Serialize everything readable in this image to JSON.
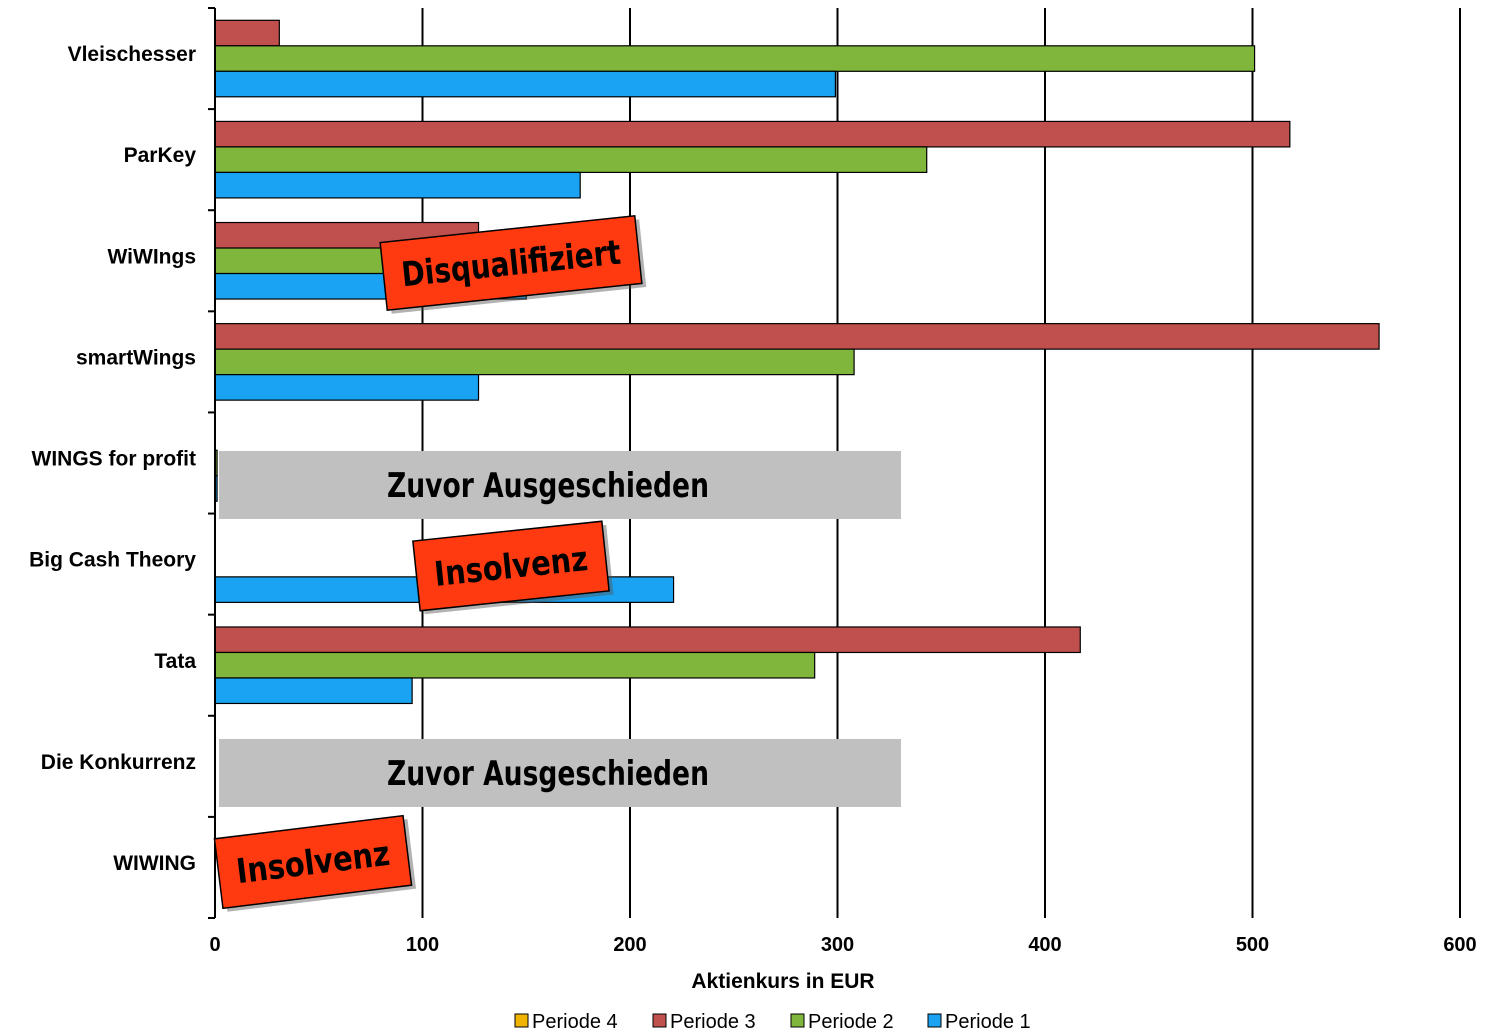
{
  "chart_data": {
    "type": "bar",
    "orientation": "horizontal",
    "categories": [
      "Vleischesser",
      "ParKey",
      "WiWIngs",
      "smartWings",
      "WINGS for profit",
      "Big Cash Theory",
      "Tata",
      "Die Konkurrenz",
      "WIWING"
    ],
    "series": [
      {
        "name": "Periode 4",
        "color": "#f0b400",
        "values": [
          null,
          null,
          null,
          null,
          null,
          null,
          null,
          null,
          null
        ]
      },
      {
        "name": "Periode 3",
        "color": "#c0504d",
        "values": [
          31,
          518,
          127,
          561,
          null,
          null,
          417,
          null,
          null
        ]
      },
      {
        "name": "Periode 2",
        "color": "#80b63b",
        "values": [
          501,
          343,
          95,
          308,
          1,
          null,
          289,
          null,
          null
        ]
      },
      {
        "name": "Periode 1",
        "color": "#1aa3f2",
        "values": [
          299,
          176,
          150,
          127,
          1,
          221,
          95,
          null,
          null
        ]
      }
    ],
    "xlabel": "Aktienkurs  in EUR",
    "ylabel": "",
    "xlim": [
      0,
      600
    ],
    "xticks": [
      0,
      100,
      200,
      300,
      400,
      500,
      600
    ],
    "grid": true,
    "legend_position": "bottom",
    "annotations": [
      {
        "category": "WiWIngs",
        "text": "Disqualifiziert",
        "style": "stamp",
        "color": "#ff3a10"
      },
      {
        "category": "WINGS for profit",
        "text": "Zuvor Ausgeschieden",
        "style": "box",
        "color": "#c0c0c0"
      },
      {
        "category": "Big Cash Theory",
        "text": "Insolvenz",
        "style": "stamp",
        "color": "#ff3a10"
      },
      {
        "category": "Die Konkurrenz",
        "text": "Zuvor Ausgeschieden",
        "style": "box",
        "color": "#c0c0c0"
      },
      {
        "category": "WIWING",
        "text": "Insolvenz",
        "style": "stamp",
        "color": "#ff3a10"
      }
    ]
  }
}
